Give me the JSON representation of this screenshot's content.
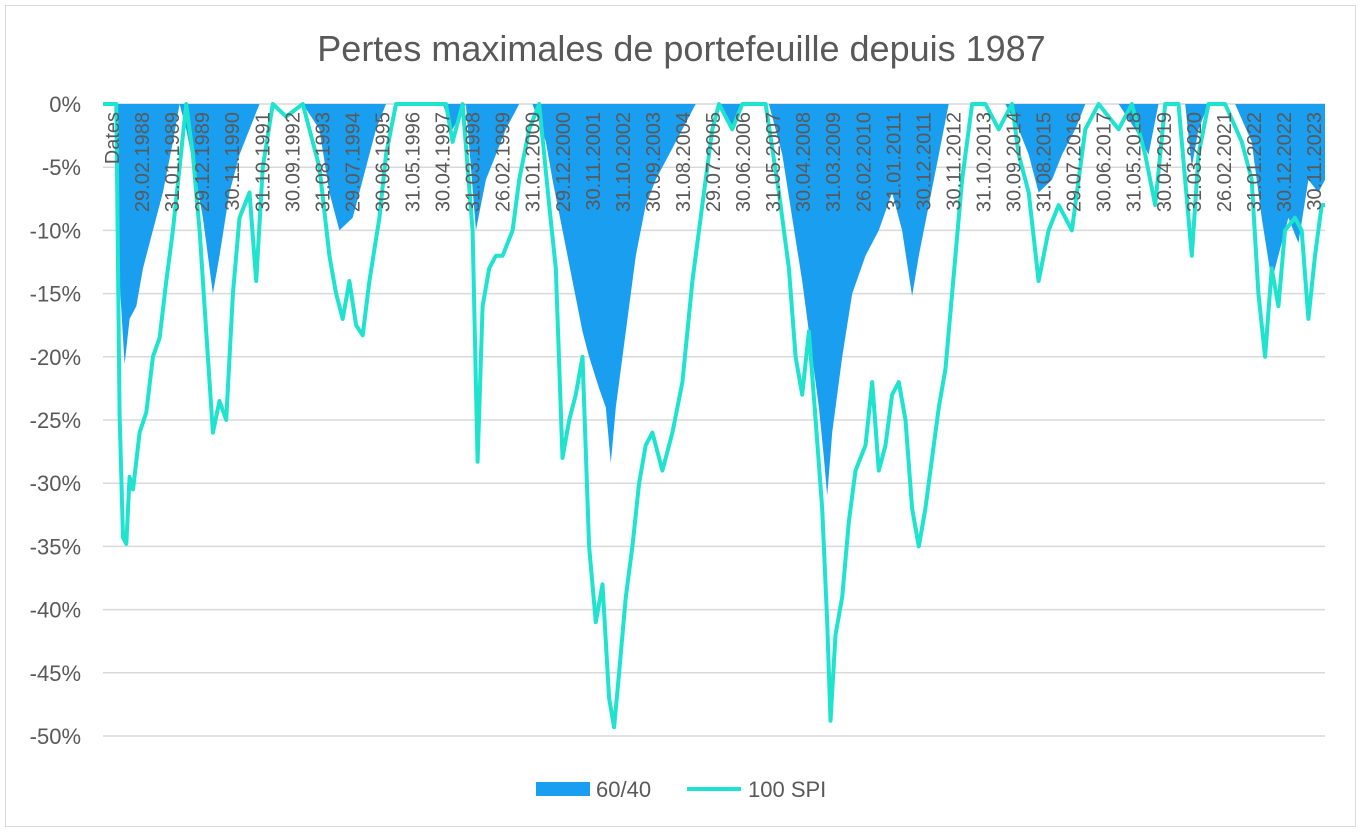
{
  "chart_data": {
    "type": "area+line",
    "title": "Pertes maximales de portefeuille depuis 1987",
    "xlabel": "Dates",
    "ylabel": "",
    "ylim": [
      -0.5,
      0
    ],
    "yticks": [
      "0%",
      "-5%",
      "-10%",
      "-15%",
      "-20%",
      "-25%",
      "-30%",
      "-35%",
      "-40%",
      "-45%",
      "-50%"
    ],
    "x_tick_labels": [
      "Dates",
      "29.02.1988",
      "31.01.1989",
      "29.12.1989",
      "30.11.1990",
      "31.10.1991",
      "30.09.1992",
      "31.08.1993",
      "29.07.1994",
      "30.06.1995",
      "31.05.1996",
      "30.04.1997",
      "31.03.1998",
      "26.02.1999",
      "31.01.2000",
      "29.12.2000",
      "30.11.2001",
      "31.10.2002",
      "30.09.2003",
      "31.08.2004",
      "29.07.2005",
      "30.06.2006",
      "31.05.2007",
      "30.04.2008",
      "31.03.2009",
      "26.02.2010",
      "31.01.2011",
      "30.12.2011",
      "30.11.2012",
      "31.10.2013",
      "30.09.2014",
      "31.08.2015",
      "29.07.2016",
      "30.06.2017",
      "31.05.2018",
      "30.04.2019",
      "31.03.2020",
      "26.02.2021",
      "31.01.2022",
      "30.12.2022",
      "30.11.2023"
    ],
    "x_range": [
      1987.5,
      2024.2
    ],
    "grid": true,
    "legend_position": "bottom",
    "series": [
      {
        "name": "60/40",
        "kind": "area",
        "color": "#1a9ef0",
        "points": [
          [
            1987.5,
            0
          ],
          [
            1987.9,
            0
          ],
          [
            1988.0,
            -0.14
          ],
          [
            1988.15,
            -0.206
          ],
          [
            1988.3,
            -0.17
          ],
          [
            1988.5,
            -0.16
          ],
          [
            1988.7,
            -0.13
          ],
          [
            1989.0,
            -0.1
          ],
          [
            1989.3,
            -0.07
          ],
          [
            1989.6,
            -0.03
          ],
          [
            1989.8,
            0
          ],
          [
            1990.0,
            -0.02
          ],
          [
            1990.3,
            -0.06
          ],
          [
            1990.5,
            -0.09
          ],
          [
            1990.8,
            -0.15
          ],
          [
            1991.0,
            -0.12
          ],
          [
            1991.3,
            -0.07
          ],
          [
            1991.6,
            -0.04
          ],
          [
            1991.9,
            -0.02
          ],
          [
            1992.2,
            0
          ],
          [
            1992.5,
            0
          ],
          [
            1993.0,
            0
          ],
          [
            1993.5,
            0
          ],
          [
            1994.0,
            -0.02
          ],
          [
            1994.3,
            -0.07
          ],
          [
            1994.6,
            -0.1
          ],
          [
            1995.0,
            -0.09
          ],
          [
            1995.4,
            -0.05
          ],
          [
            1995.7,
            -0.02
          ],
          [
            1996.0,
            0
          ],
          [
            1997.0,
            0
          ],
          [
            1997.7,
            0
          ],
          [
            1998.0,
            -0.02
          ],
          [
            1998.4,
            0
          ],
          [
            1998.7,
            -0.1
          ],
          [
            1999.0,
            -0.06
          ],
          [
            1999.3,
            -0.04
          ],
          [
            1999.6,
            -0.02
          ],
          [
            2000.0,
            0
          ],
          [
            2000.4,
            0
          ],
          [
            2000.8,
            -0.03
          ],
          [
            2001.0,
            -0.06
          ],
          [
            2001.3,
            -0.1
          ],
          [
            2001.6,
            -0.14
          ],
          [
            2001.9,
            -0.18
          ],
          [
            2002.1,
            -0.2
          ],
          [
            2002.4,
            -0.225
          ],
          [
            2002.6,
            -0.24
          ],
          [
            2002.75,
            -0.284
          ],
          [
            2002.9,
            -0.24
          ],
          [
            2003.2,
            -0.18
          ],
          [
            2003.5,
            -0.12
          ],
          [
            2003.8,
            -0.08
          ],
          [
            2004.1,
            -0.06
          ],
          [
            2004.5,
            -0.04
          ],
          [
            2004.9,
            -0.02
          ],
          [
            2005.3,
            0
          ],
          [
            2006.0,
            0
          ],
          [
            2006.4,
            -0.02
          ],
          [
            2006.7,
            0
          ],
          [
            2007.0,
            0
          ],
          [
            2007.5,
            0
          ],
          [
            2007.9,
            -0.04
          ],
          [
            2008.2,
            -0.09
          ],
          [
            2008.5,
            -0.14
          ],
          [
            2008.8,
            -0.2
          ],
          [
            2009.0,
            -0.24
          ],
          [
            2009.15,
            -0.28
          ],
          [
            2009.25,
            -0.31
          ],
          [
            2009.4,
            -0.26
          ],
          [
            2009.7,
            -0.2
          ],
          [
            2010.0,
            -0.15
          ],
          [
            2010.4,
            -0.12
          ],
          [
            2010.8,
            -0.1
          ],
          [
            2011.2,
            -0.07
          ],
          [
            2011.5,
            -0.1
          ],
          [
            2011.8,
            -0.152
          ],
          [
            2012.0,
            -0.12
          ],
          [
            2012.3,
            -0.08
          ],
          [
            2012.6,
            -0.04
          ],
          [
            2012.9,
            0
          ],
          [
            2013.5,
            0
          ],
          [
            2014.0,
            0
          ],
          [
            2014.6,
            0
          ],
          [
            2015.0,
            -0.02
          ],
          [
            2015.3,
            -0.04
          ],
          [
            2015.6,
            -0.07
          ],
          [
            2016.0,
            -0.06
          ],
          [
            2016.3,
            -0.04
          ],
          [
            2016.7,
            -0.02
          ],
          [
            2017.0,
            0
          ],
          [
            2018.0,
            0
          ],
          [
            2018.5,
            -0.02
          ],
          [
            2018.9,
            -0.04
          ],
          [
            2019.2,
            0
          ],
          [
            2020.0,
            0
          ],
          [
            2020.2,
            -0.05
          ],
          [
            2020.4,
            -0.02
          ],
          [
            2020.7,
            0
          ],
          [
            2021.5,
            0
          ],
          [
            2022.0,
            -0.03
          ],
          [
            2022.3,
            -0.09
          ],
          [
            2022.6,
            -0.14
          ],
          [
            2022.9,
            -0.11
          ],
          [
            2023.1,
            -0.09
          ],
          [
            2023.4,
            -0.11
          ],
          [
            2023.7,
            -0.06
          ],
          [
            2024.0,
            -0.07
          ],
          [
            2024.2,
            -0.06
          ]
        ]
      },
      {
        "name": "100 SPI",
        "kind": "line",
        "color": "#1ee3cf",
        "points": [
          [
            1987.5,
            0
          ],
          [
            1987.9,
            0
          ],
          [
            1988.0,
            -0.246
          ],
          [
            1988.1,
            -0.343
          ],
          [
            1988.2,
            -0.348
          ],
          [
            1988.3,
            -0.295
          ],
          [
            1988.4,
            -0.305
          ],
          [
            1988.6,
            -0.26
          ],
          [
            1988.8,
            -0.244
          ],
          [
            1989.0,
            -0.2
          ],
          [
            1989.2,
            -0.185
          ],
          [
            1989.4,
            -0.14
          ],
          [
            1989.6,
            -0.1
          ],
          [
            1989.8,
            -0.05
          ],
          [
            1990.0,
            0
          ],
          [
            1990.2,
            -0.04
          ],
          [
            1990.4,
            -0.1
          ],
          [
            1990.6,
            -0.18
          ],
          [
            1990.8,
            -0.26
          ],
          [
            1991.0,
            -0.235
          ],
          [
            1991.2,
            -0.25
          ],
          [
            1991.4,
            -0.15
          ],
          [
            1991.6,
            -0.09
          ],
          [
            1991.9,
            -0.07
          ],
          [
            1992.1,
            -0.14
          ],
          [
            1992.3,
            -0.05
          ],
          [
            1992.6,
            0
          ],
          [
            1993.0,
            -0.01
          ],
          [
            1993.5,
            0
          ],
          [
            1994.0,
            -0.05
          ],
          [
            1994.3,
            -0.12
          ],
          [
            1994.5,
            -0.15
          ],
          [
            1994.7,
            -0.17
          ],
          [
            1994.9,
            -0.14
          ],
          [
            1995.1,
            -0.175
          ],
          [
            1995.3,
            -0.183
          ],
          [
            1995.5,
            -0.14
          ],
          [
            1995.8,
            -0.09
          ],
          [
            1996.0,
            -0.04
          ],
          [
            1996.3,
            0
          ],
          [
            1997.0,
            0
          ],
          [
            1997.5,
            0
          ],
          [
            1997.8,
            0
          ],
          [
            1998.0,
            -0.03
          ],
          [
            1998.3,
            0
          ],
          [
            1998.6,
            -0.1
          ],
          [
            1998.75,
            -0.283
          ],
          [
            1998.9,
            -0.16
          ],
          [
            1999.1,
            -0.13
          ],
          [
            1999.3,
            -0.12
          ],
          [
            1999.5,
            -0.12
          ],
          [
            1999.8,
            -0.1
          ],
          [
            2000.0,
            -0.06
          ],
          [
            2000.3,
            -0.02
          ],
          [
            2000.6,
            0
          ],
          [
            2000.9,
            -0.08
          ],
          [
            2001.1,
            -0.13
          ],
          [
            2001.3,
            -0.28
          ],
          [
            2001.5,
            -0.25
          ],
          [
            2001.7,
            -0.23
          ],
          [
            2001.9,
            -0.2
          ],
          [
            2002.1,
            -0.35
          ],
          [
            2002.3,
            -0.41
          ],
          [
            2002.5,
            -0.38
          ],
          [
            2002.7,
            -0.47
          ],
          [
            2002.85,
            -0.493
          ],
          [
            2003.0,
            -0.45
          ],
          [
            2003.2,
            -0.39
          ],
          [
            2003.4,
            -0.35
          ],
          [
            2003.6,
            -0.3
          ],
          [
            2003.8,
            -0.27
          ],
          [
            2004.0,
            -0.26
          ],
          [
            2004.3,
            -0.29
          ],
          [
            2004.6,
            -0.26
          ],
          [
            2004.9,
            -0.22
          ],
          [
            2005.2,
            -0.14
          ],
          [
            2005.5,
            -0.08
          ],
          [
            2005.8,
            -0.02
          ],
          [
            2006.0,
            0
          ],
          [
            2006.4,
            -0.02
          ],
          [
            2006.7,
            0
          ],
          [
            2007.0,
            0
          ],
          [
            2007.4,
            0
          ],
          [
            2007.8,
            -0.07
          ],
          [
            2008.1,
            -0.13
          ],
          [
            2008.3,
            -0.2
          ],
          [
            2008.5,
            -0.23
          ],
          [
            2008.7,
            -0.18
          ],
          [
            2008.9,
            -0.25
          ],
          [
            2009.1,
            -0.32
          ],
          [
            2009.25,
            -0.41
          ],
          [
            2009.35,
            -0.488
          ],
          [
            2009.5,
            -0.42
          ],
          [
            2009.7,
            -0.39
          ],
          [
            2009.9,
            -0.33
          ],
          [
            2010.1,
            -0.29
          ],
          [
            2010.4,
            -0.27
          ],
          [
            2010.6,
            -0.22
          ],
          [
            2010.8,
            -0.29
          ],
          [
            2011.0,
            -0.27
          ],
          [
            2011.2,
            -0.23
          ],
          [
            2011.4,
            -0.22
          ],
          [
            2011.6,
            -0.25
          ],
          [
            2011.8,
            -0.32
          ],
          [
            2012.0,
            -0.35
          ],
          [
            2012.2,
            -0.32
          ],
          [
            2012.4,
            -0.28
          ],
          [
            2012.6,
            -0.24
          ],
          [
            2012.8,
            -0.21
          ],
          [
            2013.0,
            -0.15
          ],
          [
            2013.3,
            -0.06
          ],
          [
            2013.6,
            0
          ],
          [
            2014.0,
            0
          ],
          [
            2014.4,
            -0.02
          ],
          [
            2014.8,
            0
          ],
          [
            2015.0,
            -0.04
          ],
          [
            2015.3,
            -0.07
          ],
          [
            2015.6,
            -0.14
          ],
          [
            2015.9,
            -0.1
          ],
          [
            2016.2,
            -0.08
          ],
          [
            2016.6,
            -0.1
          ],
          [
            2017.0,
            -0.02
          ],
          [
            2017.4,
            0
          ],
          [
            2018.0,
            -0.02
          ],
          [
            2018.4,
            0
          ],
          [
            2018.8,
            -0.04
          ],
          [
            2019.1,
            -0.08
          ],
          [
            2019.4,
            0
          ],
          [
            2019.8,
            0
          ],
          [
            2020.2,
            -0.12
          ],
          [
            2020.4,
            -0.04
          ],
          [
            2020.7,
            0
          ],
          [
            2021.2,
            0
          ],
          [
            2021.7,
            -0.03
          ],
          [
            2022.0,
            -0.06
          ],
          [
            2022.2,
            -0.15
          ],
          [
            2022.4,
            -0.2
          ],
          [
            2022.6,
            -0.13
          ],
          [
            2022.8,
            -0.16
          ],
          [
            2023.0,
            -0.1
          ],
          [
            2023.3,
            -0.09
          ],
          [
            2023.5,
            -0.1
          ],
          [
            2023.7,
            -0.17
          ],
          [
            2023.9,
            -0.12
          ],
          [
            2024.1,
            -0.08
          ],
          [
            2024.2,
            -0.08
          ]
        ]
      }
    ]
  }
}
